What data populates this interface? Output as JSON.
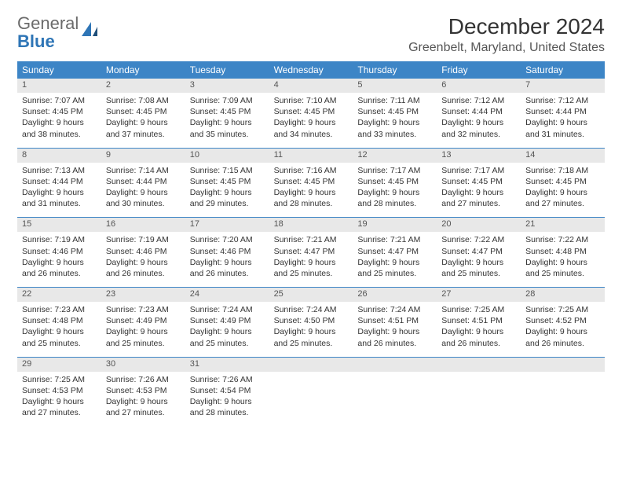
{
  "brand": {
    "word1": "General",
    "word2": "Blue"
  },
  "title": "December 2024",
  "location": "Greenbelt, Maryland, United States",
  "colors": {
    "header_bg": "#3d85c6",
    "header_text": "#ffffff",
    "daynum_bg": "#e8e8e8",
    "border": "#3d85c6",
    "text": "#333333",
    "logo_gray": "#6b6b6b",
    "logo_blue": "#2e75b6"
  },
  "days_of_week": [
    "Sunday",
    "Monday",
    "Tuesday",
    "Wednesday",
    "Thursday",
    "Friday",
    "Saturday"
  ],
  "weeks": [
    [
      {
        "n": "1",
        "sr": "7:07 AM",
        "ss": "4:45 PM",
        "dl": "9 hours and 38 minutes."
      },
      {
        "n": "2",
        "sr": "7:08 AM",
        "ss": "4:45 PM",
        "dl": "9 hours and 37 minutes."
      },
      {
        "n": "3",
        "sr": "7:09 AM",
        "ss": "4:45 PM",
        "dl": "9 hours and 35 minutes."
      },
      {
        "n": "4",
        "sr": "7:10 AM",
        "ss": "4:45 PM",
        "dl": "9 hours and 34 minutes."
      },
      {
        "n": "5",
        "sr": "7:11 AM",
        "ss": "4:45 PM",
        "dl": "9 hours and 33 minutes."
      },
      {
        "n": "6",
        "sr": "7:12 AM",
        "ss": "4:44 PM",
        "dl": "9 hours and 32 minutes."
      },
      {
        "n": "7",
        "sr": "7:12 AM",
        "ss": "4:44 PM",
        "dl": "9 hours and 31 minutes."
      }
    ],
    [
      {
        "n": "8",
        "sr": "7:13 AM",
        "ss": "4:44 PM",
        "dl": "9 hours and 31 minutes."
      },
      {
        "n": "9",
        "sr": "7:14 AM",
        "ss": "4:44 PM",
        "dl": "9 hours and 30 minutes."
      },
      {
        "n": "10",
        "sr": "7:15 AM",
        "ss": "4:45 PM",
        "dl": "9 hours and 29 minutes."
      },
      {
        "n": "11",
        "sr": "7:16 AM",
        "ss": "4:45 PM",
        "dl": "9 hours and 28 minutes."
      },
      {
        "n": "12",
        "sr": "7:17 AM",
        "ss": "4:45 PM",
        "dl": "9 hours and 28 minutes."
      },
      {
        "n": "13",
        "sr": "7:17 AM",
        "ss": "4:45 PM",
        "dl": "9 hours and 27 minutes."
      },
      {
        "n": "14",
        "sr": "7:18 AM",
        "ss": "4:45 PM",
        "dl": "9 hours and 27 minutes."
      }
    ],
    [
      {
        "n": "15",
        "sr": "7:19 AM",
        "ss": "4:46 PM",
        "dl": "9 hours and 26 minutes."
      },
      {
        "n": "16",
        "sr": "7:19 AM",
        "ss": "4:46 PM",
        "dl": "9 hours and 26 minutes."
      },
      {
        "n": "17",
        "sr": "7:20 AM",
        "ss": "4:46 PM",
        "dl": "9 hours and 26 minutes."
      },
      {
        "n": "18",
        "sr": "7:21 AM",
        "ss": "4:47 PM",
        "dl": "9 hours and 25 minutes."
      },
      {
        "n": "19",
        "sr": "7:21 AM",
        "ss": "4:47 PM",
        "dl": "9 hours and 25 minutes."
      },
      {
        "n": "20",
        "sr": "7:22 AM",
        "ss": "4:47 PM",
        "dl": "9 hours and 25 minutes."
      },
      {
        "n": "21",
        "sr": "7:22 AM",
        "ss": "4:48 PM",
        "dl": "9 hours and 25 minutes."
      }
    ],
    [
      {
        "n": "22",
        "sr": "7:23 AM",
        "ss": "4:48 PM",
        "dl": "9 hours and 25 minutes."
      },
      {
        "n": "23",
        "sr": "7:23 AM",
        "ss": "4:49 PM",
        "dl": "9 hours and 25 minutes."
      },
      {
        "n": "24",
        "sr": "7:24 AM",
        "ss": "4:49 PM",
        "dl": "9 hours and 25 minutes."
      },
      {
        "n": "25",
        "sr": "7:24 AM",
        "ss": "4:50 PM",
        "dl": "9 hours and 25 minutes."
      },
      {
        "n": "26",
        "sr": "7:24 AM",
        "ss": "4:51 PM",
        "dl": "9 hours and 26 minutes."
      },
      {
        "n": "27",
        "sr": "7:25 AM",
        "ss": "4:51 PM",
        "dl": "9 hours and 26 minutes."
      },
      {
        "n": "28",
        "sr": "7:25 AM",
        "ss": "4:52 PM",
        "dl": "9 hours and 26 minutes."
      }
    ],
    [
      {
        "n": "29",
        "sr": "7:25 AM",
        "ss": "4:53 PM",
        "dl": "9 hours and 27 minutes."
      },
      {
        "n": "30",
        "sr": "7:26 AM",
        "ss": "4:53 PM",
        "dl": "9 hours and 27 minutes."
      },
      {
        "n": "31",
        "sr": "7:26 AM",
        "ss": "4:54 PM",
        "dl": "9 hours and 28 minutes."
      },
      null,
      null,
      null,
      null
    ]
  ],
  "labels": {
    "sunrise": "Sunrise:",
    "sunset": "Sunset:",
    "daylight": "Daylight:"
  }
}
